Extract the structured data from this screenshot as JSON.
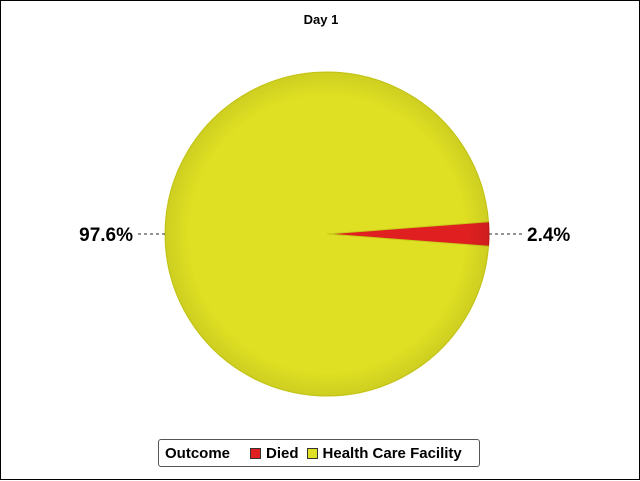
{
  "chart_data": {
    "type": "pie",
    "title": "Day 1",
    "legend": {
      "title": "Outcome",
      "placement": "bottom"
    },
    "slices": [
      {
        "label": "Died",
        "value": 2.4,
        "display": "2.4%",
        "color": "#e02020"
      },
      {
        "label": "Health Care Facility",
        "value": 97.6,
        "display": "97.6%",
        "color": "#dfe023"
      }
    ]
  }
}
